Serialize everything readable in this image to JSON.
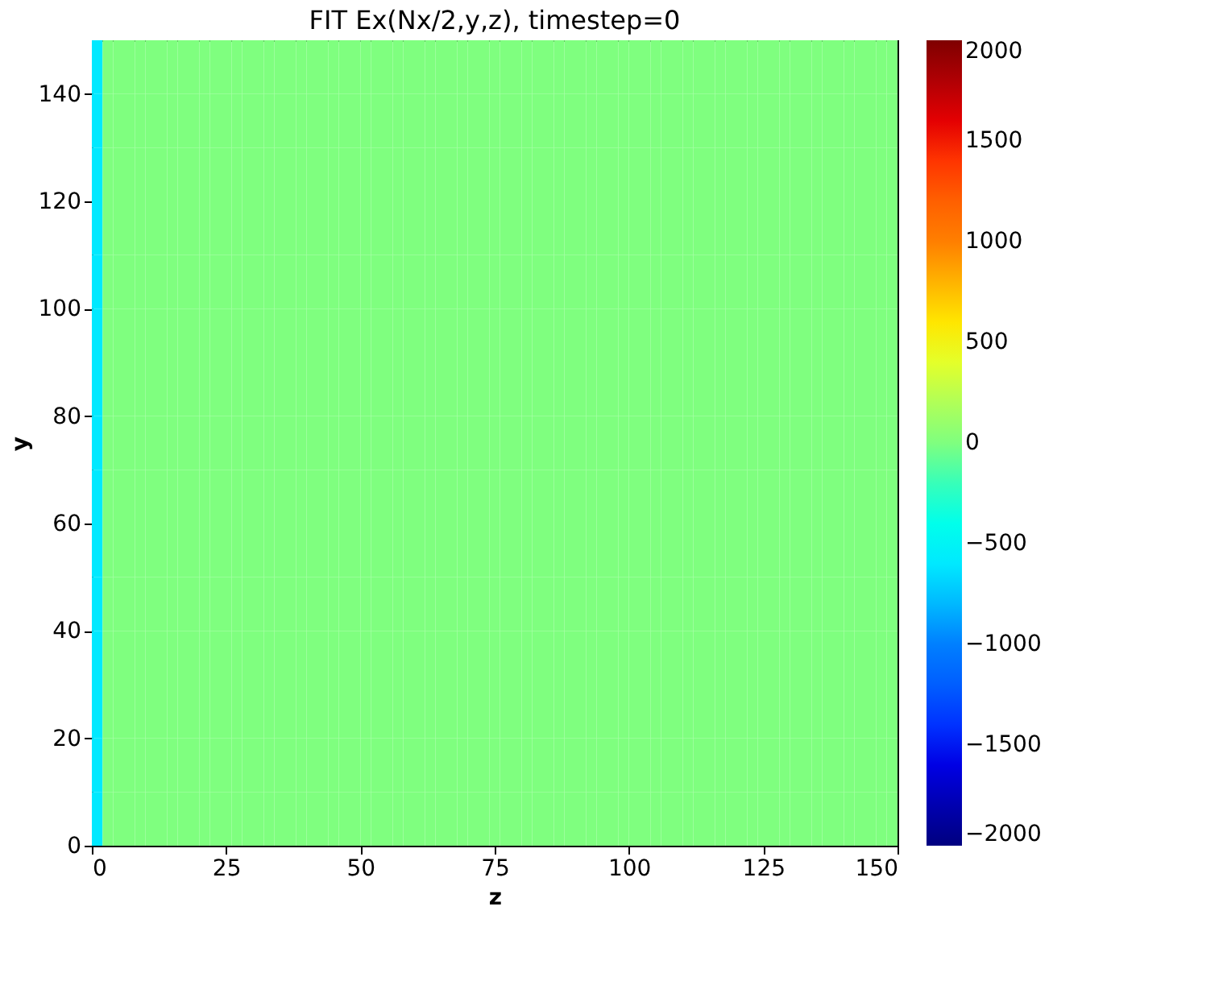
{
  "chart_data": {
    "type": "heatmap",
    "title": "FIT Ex(Nx/2,y,z), timestep=0",
    "xlabel": "z",
    "ylabel": "y",
    "x": [
      1,
      3,
      5,
      7,
      9,
      11,
      13,
      15,
      17,
      19,
      21,
      23,
      25,
      27,
      29,
      31,
      33,
      35,
      37,
      39,
      41,
      43,
      45,
      47,
      49,
      51,
      53,
      55,
      57,
      59,
      61,
      63,
      65,
      67,
      69,
      71,
      73,
      75,
      77,
      79,
      81,
      83,
      85,
      87,
      89,
      91,
      93,
      95,
      97,
      99,
      101,
      103,
      105,
      107,
      109,
      111,
      113,
      115,
      117,
      119,
      121,
      123,
      125,
      127,
      129,
      131,
      133,
      135,
      137,
      139,
      141,
      143,
      145,
      147,
      149
    ],
    "y": [
      5,
      15,
      25,
      35,
      45,
      55,
      65,
      75,
      85,
      95,
      105,
      115,
      125,
      135,
      145
    ],
    "cells": [
      [
        -600,
        0,
        0,
        0,
        0,
        0,
        0,
        0,
        0,
        0,
        0,
        0,
        0,
        0,
        0,
        0,
        0,
        0,
        0,
        0,
        0,
        0,
        0,
        0,
        0,
        0,
        0,
        0,
        0,
        0,
        0,
        0,
        0,
        0,
        0,
        0,
        0,
        0,
        0,
        0,
        0,
        0,
        0,
        0,
        0,
        0,
        0,
        0,
        0,
        0,
        0,
        0,
        0,
        0,
        0,
        0,
        0,
        0,
        0,
        0,
        0,
        0,
        0,
        0,
        0,
        0,
        0,
        0,
        0,
        0,
        0,
        0,
        0,
        0,
        0
      ],
      [
        -600,
        0,
        0,
        0,
        0,
        0,
        0,
        0,
        0,
        0,
        0,
        0,
        0,
        0,
        0,
        0,
        0,
        0,
        0,
        0,
        0,
        0,
        0,
        0,
        0,
        0,
        0,
        0,
        0,
        0,
        0,
        0,
        0,
        0,
        0,
        0,
        0,
        0,
        0,
        0,
        0,
        0,
        0,
        0,
        0,
        0,
        0,
        0,
        0,
        0,
        0,
        0,
        0,
        0,
        0,
        0,
        0,
        0,
        0,
        0,
        0,
        0,
        0,
        0,
        0,
        0,
        0,
        0,
        0,
        0,
        0,
        0,
        0,
        0,
        0
      ],
      [
        -600,
        0,
        0,
        0,
        0,
        0,
        0,
        0,
        0,
        0,
        0,
        0,
        0,
        0,
        0,
        0,
        0,
        0,
        0,
        0,
        0,
        0,
        0,
        0,
        0,
        0,
        0,
        0,
        0,
        0,
        0,
        0,
        0,
        0,
        0,
        0,
        0,
        0,
        0,
        0,
        0,
        0,
        0,
        0,
        0,
        0,
        0,
        0,
        0,
        0,
        0,
        0,
        0,
        0,
        0,
        0,
        0,
        0,
        0,
        0,
        0,
        0,
        0,
        0,
        0,
        0,
        0,
        0,
        0,
        0,
        0,
        0,
        0,
        0,
        0
      ],
      [
        -600,
        0,
        0,
        0,
        0,
        0,
        0,
        0,
        0,
        0,
        0,
        0,
        0,
        0,
        0,
        0,
        0,
        0,
        0,
        0,
        0,
        0,
        0,
        0,
        0,
        0,
        0,
        0,
        0,
        0,
        0,
        0,
        0,
        0,
        0,
        0,
        0,
        0,
        0,
        0,
        0,
        0,
        0,
        0,
        0,
        0,
        0,
        0,
        0,
        0,
        0,
        0,
        0,
        0,
        0,
        0,
        0,
        0,
        0,
        0,
        0,
        0,
        0,
        0,
        0,
        0,
        0,
        0,
        0,
        0,
        0,
        0,
        0,
        0,
        0
      ],
      [
        -600,
        0,
        0,
        0,
        0,
        0,
        0,
        0,
        0,
        0,
        0,
        0,
        0,
        0,
        0,
        0,
        0,
        0,
        0,
        0,
        0,
        0,
        0,
        0,
        0,
        0,
        0,
        0,
        0,
        0,
        0,
        0,
        0,
        0,
        0,
        0,
        0,
        0,
        0,
        0,
        0,
        0,
        0,
        0,
        0,
        0,
        0,
        0,
        0,
        0,
        0,
        0,
        0,
        0,
        0,
        0,
        0,
        0,
        0,
        0,
        0,
        0,
        0,
        0,
        0,
        0,
        0,
        0,
        0,
        0,
        0,
        0,
        0,
        0,
        0
      ],
      [
        -600,
        0,
        0,
        0,
        0,
        0,
        0,
        0,
        0,
        0,
        0,
        0,
        0,
        0,
        0,
        0,
        0,
        0,
        0,
        0,
        0,
        0,
        0,
        0,
        0,
        0,
        0,
        0,
        0,
        0,
        0,
        0,
        0,
        0,
        0,
        0,
        0,
        0,
        0,
        0,
        0,
        0,
        0,
        0,
        0,
        0,
        0,
        0,
        0,
        0,
        0,
        0,
        0,
        0,
        0,
        0,
        0,
        0,
        0,
        0,
        0,
        0,
        0,
        0,
        0,
        0,
        0,
        0,
        0,
        0,
        0,
        0,
        0,
        0,
        0
      ],
      [
        -600,
        0,
        0,
        0,
        0,
        0,
        0,
        0,
        0,
        0,
        0,
        0,
        0,
        0,
        0,
        0,
        0,
        0,
        0,
        0,
        0,
        0,
        0,
        0,
        0,
        0,
        0,
        0,
        0,
        0,
        0,
        0,
        0,
        0,
        0,
        0,
        0,
        0,
        0,
        0,
        0,
        0,
        0,
        0,
        0,
        0,
        0,
        0,
        0,
        0,
        0,
        0,
        0,
        0,
        0,
        0,
        0,
        0,
        0,
        0,
        0,
        0,
        0,
        0,
        0,
        0,
        0,
        0,
        0,
        0,
        0,
        0,
        0,
        0,
        0
      ],
      [
        -600,
        0,
        0,
        0,
        0,
        0,
        0,
        0,
        0,
        0,
        0,
        0,
        0,
        0,
        0,
        0,
        0,
        0,
        0,
        0,
        0,
        0,
        0,
        0,
        0,
        0,
        0,
        0,
        0,
        0,
        0,
        0,
        0,
        0,
        0,
        0,
        0,
        0,
        0,
        0,
        0,
        0,
        0,
        0,
        0,
        0,
        0,
        0,
        0,
        0,
        0,
        0,
        0,
        0,
        0,
        0,
        0,
        0,
        0,
        0,
        0,
        0,
        0,
        0,
        0,
        0,
        0,
        0,
        0,
        0,
        0,
        0,
        0,
        0,
        0
      ],
      [
        -600,
        0,
        0,
        0,
        0,
        0,
        0,
        0,
        0,
        0,
        0,
        0,
        0,
        0,
        0,
        0,
        0,
        0,
        0,
        0,
        0,
        0,
        0,
        0,
        0,
        0,
        0,
        0,
        0,
        0,
        0,
        0,
        0,
        0,
        0,
        0,
        0,
        0,
        0,
        0,
        0,
        0,
        0,
        0,
        0,
        0,
        0,
        0,
        0,
        0,
        0,
        0,
        0,
        0,
        0,
        0,
        0,
        0,
        0,
        0,
        0,
        0,
        0,
        0,
        0,
        0,
        0,
        0,
        0,
        0,
        0,
        0,
        0,
        0,
        0
      ],
      [
        -600,
        0,
        0,
        0,
        0,
        0,
        0,
        0,
        0,
        0,
        0,
        0,
        0,
        0,
        0,
        0,
        0,
        0,
        0,
        0,
        0,
        0,
        0,
        0,
        0,
        0,
        0,
        0,
        0,
        0,
        0,
        0,
        0,
        0,
        0,
        0,
        0,
        0,
        0,
        0,
        0,
        0,
        0,
        0,
        0,
        0,
        0,
        0,
        0,
        0,
        0,
        0,
        0,
        0,
        0,
        0,
        0,
        0,
        0,
        0,
        0,
        0,
        0,
        0,
        0,
        0,
        0,
        0,
        0,
        0,
        0,
        0,
        0,
        0,
        0
      ],
      [
        -600,
        0,
        0,
        0,
        0,
        0,
        0,
        0,
        0,
        0,
        0,
        0,
        0,
        0,
        0,
        0,
        0,
        0,
        0,
        0,
        0,
        0,
        0,
        0,
        0,
        0,
        0,
        0,
        0,
        0,
        0,
        0,
        0,
        0,
        0,
        0,
        0,
        0,
        0,
        0,
        0,
        0,
        0,
        0,
        0,
        0,
        0,
        0,
        0,
        0,
        0,
        0,
        0,
        0,
        0,
        0,
        0,
        0,
        0,
        0,
        0,
        0,
        0,
        0,
        0,
        0,
        0,
        0,
        0,
        0,
        0,
        0,
        0,
        0,
        0
      ],
      [
        -600,
        0,
        0,
        0,
        0,
        0,
        0,
        0,
        0,
        0,
        0,
        0,
        0,
        0,
        0,
        0,
        0,
        0,
        0,
        0,
        0,
        0,
        0,
        0,
        0,
        0,
        0,
        0,
        0,
        0,
        0,
        0,
        0,
        0,
        0,
        0,
        0,
        0,
        0,
        0,
        0,
        0,
        0,
        0,
        0,
        0,
        0,
        0,
        0,
        0,
        0,
        0,
        0,
        0,
        0,
        0,
        0,
        0,
        0,
        0,
        0,
        0,
        0,
        0,
        0,
        0,
        0,
        0,
        0,
        0,
        0,
        0,
        0,
        0,
        0
      ],
      [
        -600,
        0,
        0,
        0,
        0,
        0,
        0,
        0,
        0,
        0,
        0,
        0,
        0,
        0,
        0,
        0,
        0,
        0,
        0,
        0,
        0,
        0,
        0,
        0,
        0,
        0,
        0,
        0,
        0,
        0,
        0,
        0,
        0,
        0,
        0,
        0,
        0,
        0,
        0,
        0,
        0,
        0,
        0,
        0,
        0,
        0,
        0,
        0,
        0,
        0,
        0,
        0,
        0,
        0,
        0,
        0,
        0,
        0,
        0,
        0,
        0,
        0,
        0,
        0,
        0,
        0,
        0,
        0,
        0,
        0,
        0,
        0,
        0,
        0,
        0
      ],
      [
        -600,
        0,
        0,
        0,
        0,
        0,
        0,
        0,
        0,
        0,
        0,
        0,
        0,
        0,
        0,
        0,
        0,
        0,
        0,
        0,
        0,
        0,
        0,
        0,
        0,
        0,
        0,
        0,
        0,
        0,
        0,
        0,
        0,
        0,
        0,
        0,
        0,
        0,
        0,
        0,
        0,
        0,
        0,
        0,
        0,
        0,
        0,
        0,
        0,
        0,
        0,
        0,
        0,
        0,
        0,
        0,
        0,
        0,
        0,
        0,
        0,
        0,
        0,
        0,
        0,
        0,
        0,
        0,
        0,
        0,
        0,
        0,
        0,
        0,
        0
      ],
      [
        -600,
        0,
        0,
        0,
        0,
        0,
        0,
        0,
        0,
        0,
        0,
        0,
        0,
        0,
        0,
        0,
        0,
        0,
        0,
        0,
        0,
        0,
        0,
        0,
        0,
        0,
        0,
        0,
        0,
        0,
        0,
        0,
        0,
        0,
        0,
        0,
        0,
        0,
        0,
        0,
        0,
        0,
        0,
        0,
        0,
        0,
        0,
        0,
        0,
        0,
        0,
        0,
        0,
        0,
        0,
        0,
        0,
        0,
        0,
        0,
        0,
        0,
        0,
        0,
        0,
        0,
        0,
        0,
        0,
        0,
        0,
        0,
        0,
        0,
        0
      ]
    ],
    "xlim": [
      0,
      150
    ],
    "ylim": [
      0,
      150
    ],
    "xticks": [
      0,
      25,
      50,
      75,
      100,
      125,
      150
    ],
    "yticks": [
      0,
      20,
      40,
      60,
      80,
      100,
      120,
      140
    ],
    "clim": [
      -2000,
      2000
    ],
    "cticks": [
      -2000,
      -1500,
      -1000,
      -500,
      0,
      500,
      1000,
      1500,
      2000
    ],
    "grid": false
  }
}
